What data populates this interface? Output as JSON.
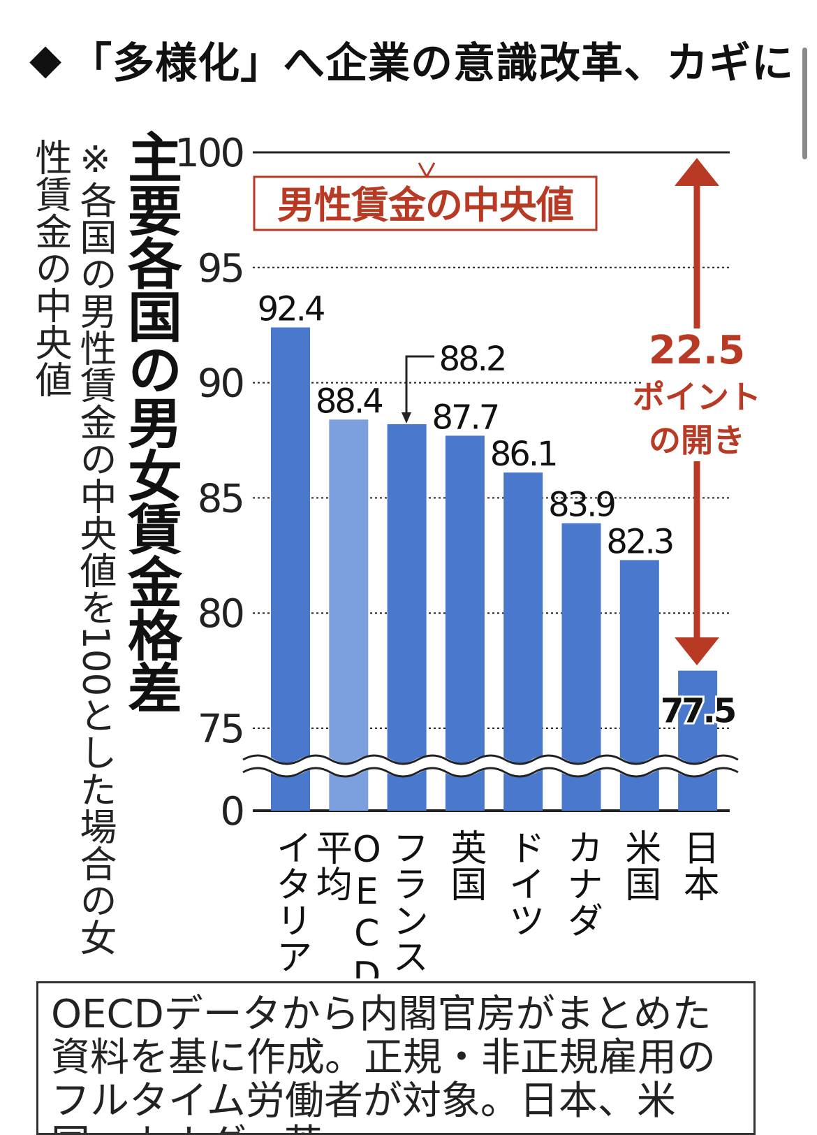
{
  "headline": {
    "marker": "◆",
    "text": "「多様化」へ企業の意識改革、カギに"
  },
  "title": "主要各国の男女賃金格差",
  "note": "※各国の男性賃金の中央値を100とした場合の女性賃金の中央値",
  "annotation": {
    "reference_label": "男性賃金の中央値",
    "gap_label": [
      "22.5",
      "ポイント",
      "の開き"
    ]
  },
  "source": "OECDデータから内閣官房がまとめた資料を基に作成。正規・非正規雇用のフルタイム労働者が対象。日本、米国、カナダ、英",
  "colors": {
    "bar": "#4a78cc",
    "bar_oecd": "#7c9fde",
    "accent": "#b83a24",
    "axis": "#222222"
  },
  "chart_data": {
    "type": "bar",
    "categories": [
      "イタリア",
      "OECD平均",
      "フランス",
      "英国",
      "ドイツ",
      "カナダ",
      "米国",
      "日本"
    ],
    "category_lines": [
      [
        "イタリア"
      ],
      [
        "OECD",
        "平均"
      ],
      [
        "フランス"
      ],
      [
        "英国"
      ],
      [
        "ドイツ"
      ],
      [
        "カナダ"
      ],
      [
        "米国"
      ],
      [
        "日本"
      ]
    ],
    "values": [
      92.4,
      88.4,
      88.2,
      87.7,
      86.1,
      83.9,
      82.3,
      77.5
    ],
    "data_labels": [
      "92.4",
      "88.4",
      "88.2",
      "87.7",
      "86.1",
      "83.9",
      "82.3",
      "77.5"
    ],
    "highlight": "OECD平均",
    "yticks": [
      "100",
      "95",
      "90",
      "85",
      "80",
      "75",
      "0"
    ],
    "ylim": [
      75,
      100
    ],
    "axis_break": true,
    "grid": true
  }
}
